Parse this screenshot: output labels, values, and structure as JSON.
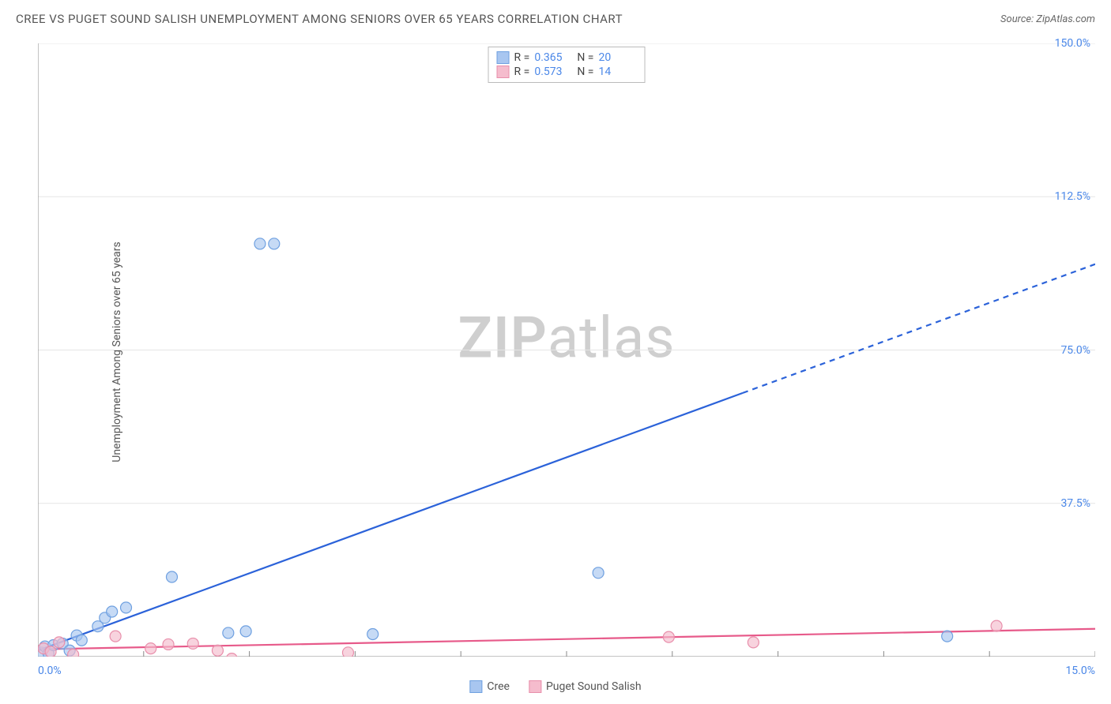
{
  "header": {
    "title": "CREE VS PUGET SOUND SALISH UNEMPLOYMENT AMONG SENIORS OVER 65 YEARS CORRELATION CHART",
    "source": "Source: ZipAtlas.com"
  },
  "ylabel": "Unemployment Among Seniors over 65 years",
  "watermark": {
    "part1": "ZIP",
    "part2": "atlas"
  },
  "chart": {
    "type": "scatter-with-regression",
    "background_color": "#ffffff",
    "grid_color": "#e5e5e5",
    "axis_color": "#888888",
    "tick_mark_color": "#888888",
    "xlim": [
      0,
      15
    ],
    "ylim": [
      0,
      150
    ],
    "x_tick_marks": [
      0,
      1.5,
      3.0,
      4.5,
      6.0,
      7.5,
      9.0,
      10.5,
      12.0,
      13.5,
      15.0
    ],
    "y_gridlines": [
      37.5,
      75.0,
      112.5,
      150.0
    ],
    "x_axis_labels": {
      "min": "0.0%",
      "max": "15.0%"
    },
    "y_axis_labels": [
      "37.5%",
      "75.0%",
      "112.5%",
      "150.0%"
    ],
    "marker_radius": 7,
    "marker_stroke_width": 1.2,
    "line_width": 2.2,
    "series": [
      {
        "name": "Cree",
        "color_fill": "#a8c6f0",
        "color_stroke": "#6fa0e0",
        "line_color": "#2b62d9",
        "R": "0.365",
        "N": "20",
        "points": [
          [
            0.05,
            1.0
          ],
          [
            0.1,
            2.5
          ],
          [
            0.15,
            0.8
          ],
          [
            0.22,
            2.8
          ],
          [
            0.35,
            3.2
          ],
          [
            0.45,
            1.5
          ],
          [
            0.55,
            5.2
          ],
          [
            0.62,
            4.0
          ],
          [
            0.85,
            7.4
          ],
          [
            0.95,
            9.5
          ],
          [
            1.05,
            11.0
          ],
          [
            1.25,
            12.0
          ],
          [
            1.9,
            19.5
          ],
          [
            2.7,
            5.8
          ],
          [
            2.95,
            6.2
          ],
          [
            3.15,
            101.0
          ],
          [
            3.35,
            101.0
          ],
          [
            4.75,
            5.5
          ],
          [
            7.95,
            20.5
          ],
          [
            12.9,
            5.0
          ]
        ],
        "trend": {
          "x1": 0,
          "y1": 1.5,
          "x2": 10.0,
          "y2": 64.5,
          "dashed_x2": 15.0,
          "dashed_y2": 96.0
        }
      },
      {
        "name": "Puget Sound Salish",
        "color_fill": "#f5bccd",
        "color_stroke": "#e88fab",
        "line_color": "#e75a8a",
        "R": "0.573",
        "N": "14",
        "points": [
          [
            0.08,
            2.0
          ],
          [
            0.18,
            1.2
          ],
          [
            0.3,
            3.5
          ],
          [
            0.5,
            0.5
          ],
          [
            1.1,
            5.0
          ],
          [
            1.6,
            2.0
          ],
          [
            1.85,
            3.0
          ],
          [
            2.2,
            3.2
          ],
          [
            2.55,
            1.5
          ],
          [
            2.75,
            -0.5
          ],
          [
            4.4,
            1.0
          ],
          [
            8.95,
            4.8
          ],
          [
            10.15,
            3.5
          ],
          [
            13.6,
            7.5
          ]
        ],
        "trend": {
          "x1": 0,
          "y1": 1.8,
          "x2": 15.0,
          "y2": 6.8
        }
      }
    ]
  },
  "legend_top": {
    "r_label": "R =",
    "n_label": "N ="
  },
  "legend_bottom": {
    "items": [
      "Cree",
      "Puget Sound Salish"
    ]
  }
}
